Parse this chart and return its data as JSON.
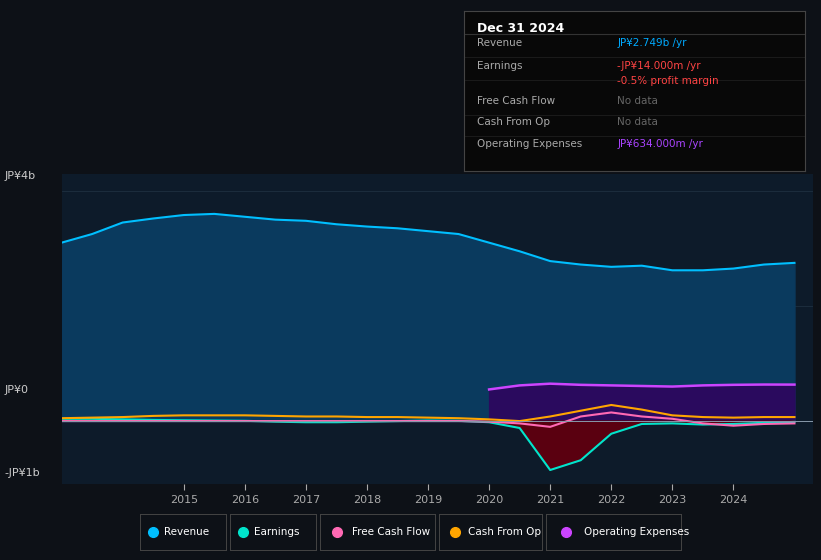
{
  "bg_color": "#0d1117",
  "plot_bg_color": "#0d1b2a",
  "title_box": {
    "title": "Dec 31 2024",
    "rows": [
      {
        "label": "Revenue",
        "value": "JP¥2.749b /yr",
        "value_color": "#00aaff"
      },
      {
        "label": "Earnings",
        "value": "-JP¥14.000m /yr",
        "value_color": "#ff4444"
      },
      {
        "label": "",
        "value": "-0.5% profit margin",
        "value_color": "#ff4444"
      },
      {
        "label": "Free Cash Flow",
        "value": "No data",
        "value_color": "#666666"
      },
      {
        "label": "Cash From Op",
        "value": "No data",
        "value_color": "#666666"
      },
      {
        "label": "Operating Expenses",
        "value": "JP¥634.000m /yr",
        "value_color": "#aa44ff"
      }
    ]
  },
  "ylabel_top": "JP¥4b",
  "ylabel_zero": "JP¥0",
  "ylabel_bottom": "-JP¥1b",
  "x_ticks": [
    2015,
    2016,
    2017,
    2018,
    2019,
    2020,
    2021,
    2022,
    2023,
    2024
  ],
  "years": [
    2013.0,
    2013.5,
    2014.0,
    2014.5,
    2015.0,
    2015.5,
    2016.0,
    2016.5,
    2017.0,
    2017.5,
    2018.0,
    2018.5,
    2019.0,
    2019.5,
    2020.0,
    2020.5,
    2021.0,
    2021.5,
    2022.0,
    2022.5,
    2023.0,
    2023.5,
    2024.0,
    2024.5,
    2025.0
  ],
  "revenue": [
    3.1,
    3.25,
    3.45,
    3.52,
    3.58,
    3.6,
    3.55,
    3.5,
    3.48,
    3.42,
    3.38,
    3.35,
    3.3,
    3.25,
    3.1,
    2.95,
    2.78,
    2.72,
    2.68,
    2.7,
    2.62,
    2.62,
    2.65,
    2.72,
    2.749
  ],
  "earnings": [
    0.04,
    0.04,
    0.03,
    0.02,
    0.015,
    0.01,
    0.005,
    -0.01,
    -0.02,
    -0.02,
    -0.01,
    0.0,
    0.01,
    0.005,
    -0.02,
    -0.12,
    -0.85,
    -0.68,
    -0.22,
    -0.05,
    -0.04,
    -0.06,
    -0.05,
    -0.03,
    -0.014
  ],
  "free_cash_flow": [
    0.0,
    0.0,
    0.0,
    0.0,
    0.0,
    0.0,
    0.0,
    0.0,
    0.0,
    0.0,
    0.0,
    0.0,
    0.0,
    0.0,
    -0.01,
    -0.04,
    -0.1,
    0.08,
    0.15,
    0.08,
    0.04,
    -0.04,
    -0.08,
    -0.05,
    -0.04
  ],
  "cash_from_op": [
    0.05,
    0.06,
    0.07,
    0.09,
    0.1,
    0.1,
    0.1,
    0.09,
    0.08,
    0.08,
    0.07,
    0.07,
    0.06,
    0.05,
    0.03,
    0.0,
    0.08,
    0.18,
    0.28,
    0.2,
    0.1,
    0.07,
    0.06,
    0.07,
    0.07
  ],
  "op_expenses_x": [
    2020.0,
    2020.5,
    2021.0,
    2021.5,
    2022.0,
    2022.5,
    2023.0,
    2023.5,
    2024.0,
    2024.5,
    2025.0
  ],
  "op_expenses_y": [
    0.55,
    0.62,
    0.65,
    0.63,
    0.62,
    0.61,
    0.6,
    0.62,
    0.63,
    0.635,
    0.634
  ],
  "revenue_color": "#00bfff",
  "revenue_fill_color": "#0a3a5e",
  "earnings_color": "#00e5cc",
  "earnings_neg_fill": "#5a0010",
  "earnings_pos_fill": "#003322",
  "free_cash_flow_color": "#ff69b4",
  "cash_from_op_color": "#ffa500",
  "op_expenses_color": "#cc44ff",
  "op_expenses_fill_color": "#2a0a5e",
  "ylim": [
    -1.1,
    4.3
  ],
  "xlim": [
    2013.0,
    2025.3
  ],
  "legend_items": [
    {
      "label": "Revenue",
      "color": "#00bfff"
    },
    {
      "label": "Earnings",
      "color": "#00e5cc"
    },
    {
      "label": "Free Cash Flow",
      "color": "#ff69b4"
    },
    {
      "label": "Cash From Op",
      "color": "#ffa500"
    },
    {
      "label": "Operating Expenses",
      "color": "#cc44ff"
    }
  ]
}
